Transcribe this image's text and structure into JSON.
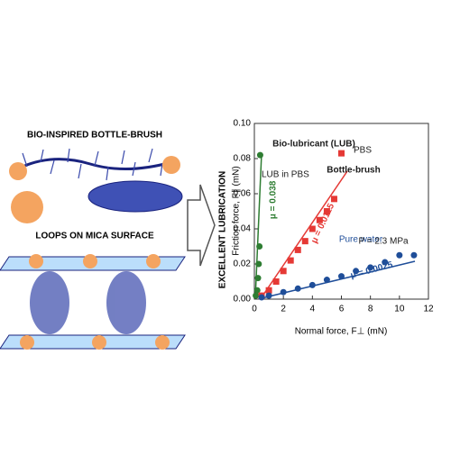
{
  "left_panel": {
    "top_label": "BIO-INSPIRED BOTTLE-BRUSH",
    "bottom_label": "LOOPS ON MICA SURFACE",
    "arrow_label": "EXCELLENT LUBRICATION"
  },
  "chart_data": {
    "type": "scatter",
    "xlabel": "Normal force, F⊥ (mN)",
    "ylabel": "Friction force, F∥ (mN)",
    "xlim": [
      0,
      12
    ],
    "xticks": [
      0,
      2,
      4,
      6,
      8,
      10,
      12
    ],
    "ylim": [
      0,
      0.1
    ],
    "yticks": [
      {
        "value": 0,
        "label": "0.00"
      },
      {
        "value": 0.02,
        "label": "0.02"
      },
      {
        "value": 0.04,
        "label": "0.04"
      },
      {
        "value": 0.06,
        "label": "0.06"
      },
      {
        "value": 0.08,
        "label": "0.08"
      },
      {
        "value": 0.1,
        "label": "0.10"
      }
    ],
    "series": [
      {
        "name": "LUB in PBS",
        "color": "#2e7d32",
        "marker": "circle",
        "x": [
          0.1,
          0.2,
          0.25,
          0.3,
          0.35,
          0.4
        ],
        "values": [
          0.002,
          0.005,
          0.012,
          0.02,
          0.03,
          0.082
        ]
      },
      {
        "name": "PBS",
        "color": "#e53935",
        "marker": "square",
        "x": [
          0.5,
          1,
          1.5,
          2,
          2.5,
          3,
          3.5,
          4,
          4.5,
          5,
          5.5,
          6
        ],
        "values": [
          0.002,
          0.005,
          0.01,
          0.016,
          0.022,
          0.028,
          0.033,
          0.04,
          0.045,
          0.05,
          0.057,
          0.083
        ]
      },
      {
        "name": "Pure water",
        "color": "#1f4e99",
        "marker": "circle",
        "x": [
          0.5,
          1,
          2,
          3,
          4,
          5,
          6,
          7,
          8,
          9,
          10,
          11
        ],
        "values": [
          0.001,
          0.002,
          0.004,
          0.006,
          0.008,
          0.011,
          0.013,
          0.016,
          0.018,
          0.021,
          0.025,
          0.025
        ]
      }
    ],
    "annotations": [
      {
        "text": "Bio-lubricant (LUB)",
        "color": "#1a1a1a"
      },
      {
        "text": "Bottle-brush",
        "color": "#1a1a1a"
      },
      {
        "text": "μ = 0.038",
        "color": "#2e7d32"
      },
      {
        "text": "μ = 0.0115",
        "color": "#e53935"
      },
      {
        "text": "μ = 0.0025",
        "color": "#1f4e99"
      },
      {
        "text": "P = 2.3 MPa",
        "color": "#1a1a1a"
      }
    ]
  }
}
